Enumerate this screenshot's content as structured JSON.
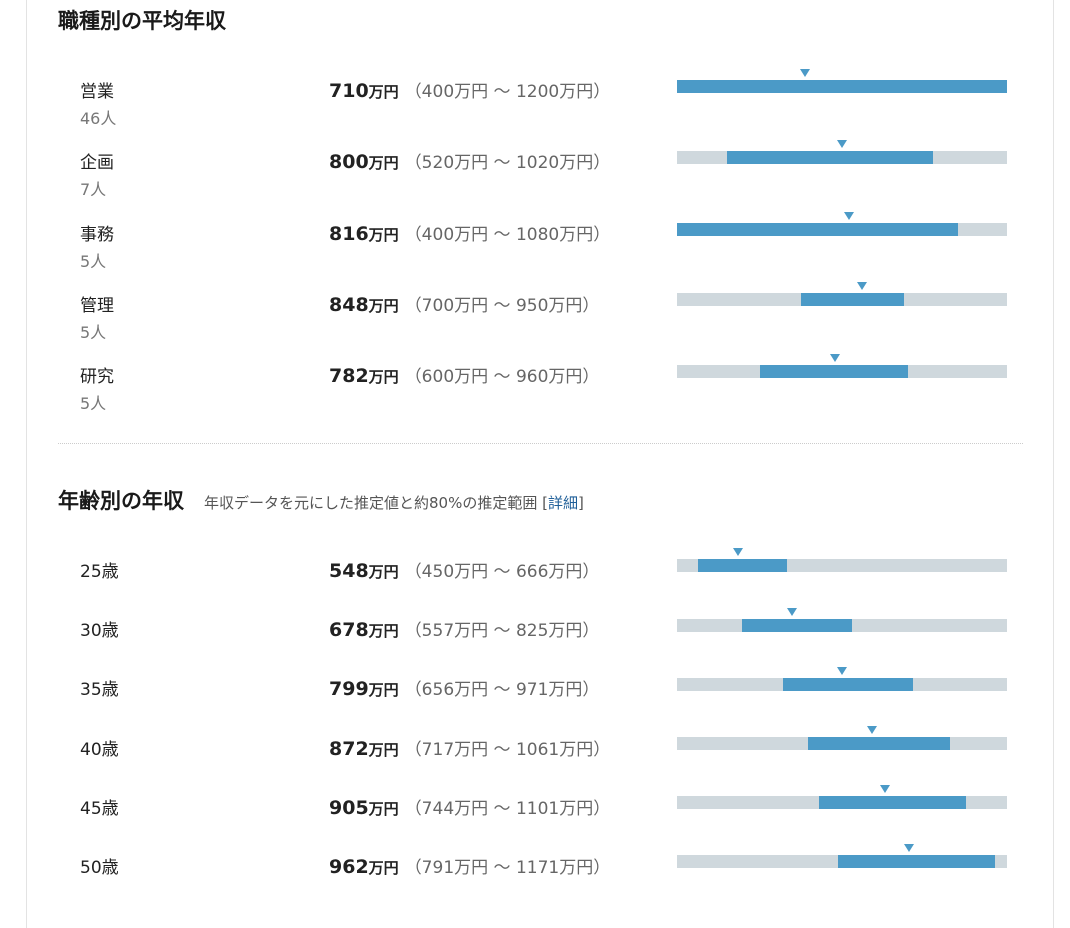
{
  "job_section": {
    "title": "職種別の平均年収",
    "rows": [
      {
        "name": "営業",
        "count": "46人",
        "avg": "710",
        "unit": "万円",
        "range": "（400万円 〜 1200万円）",
        "avg_value": 710,
        "low": 400,
        "high": 1200
      },
      {
        "name": "企画",
        "count": "7人",
        "avg": "800",
        "unit": "万円",
        "range": "（520万円 〜 1020万円）",
        "avg_value": 800,
        "low": 520,
        "high": 1020
      },
      {
        "name": "事務",
        "count": "5人",
        "avg": "816",
        "unit": "万円",
        "range": "（400万円 〜 1080万円）",
        "avg_value": 816,
        "low": 400,
        "high": 1080
      },
      {
        "name": "管理",
        "count": "5人",
        "avg": "848",
        "unit": "万円",
        "range": "（700万円 〜 950万円）",
        "avg_value": 848,
        "low": 700,
        "high": 950
      },
      {
        "name": "研究",
        "count": "5人",
        "avg": "782",
        "unit": "万円",
        "range": "（600万円 〜 960万円）",
        "avg_value": 782,
        "low": 600,
        "high": 960
      }
    ]
  },
  "age_section": {
    "title": "年齢別の年収",
    "subtitle": "年収データを元にした推定値と約80%の推定範囲 [",
    "detail_link": "詳細",
    "subtitle_end": "]",
    "rows": [
      {
        "name": "25歳",
        "avg": "548",
        "unit": "万円",
        "range": "（450万円 〜 666万円）",
        "avg_value": 548,
        "low": 450,
        "high": 666
      },
      {
        "name": "30歳",
        "avg": "678",
        "unit": "万円",
        "range": "（557万円 〜 825万円）",
        "avg_value": 678,
        "low": 557,
        "high": 825
      },
      {
        "name": "35歳",
        "avg": "799",
        "unit": "万円",
        "range": "（656万円 〜 971万円）",
        "avg_value": 799,
        "low": 656,
        "high": 971
      },
      {
        "name": "40歳",
        "avg": "872",
        "unit": "万円",
        "range": "（717万円 〜 1061万円）",
        "avg_value": 872,
        "low": 717,
        "high": 1061
      },
      {
        "name": "45歳",
        "avg": "905",
        "unit": "万円",
        "range": "（744万円 〜 1101万円）",
        "avg_value": 905,
        "low": 744,
        "high": 1101
      },
      {
        "name": "50歳",
        "avg": "962",
        "unit": "万円",
        "range": "（791万円 〜 1171万円）",
        "avg_value": 962,
        "low": 791,
        "high": 1171
      }
    ]
  },
  "colors": {
    "bar_track": "#cfd8dd",
    "bar_fill": "#4b9ac7",
    "link": "#1f5f99"
  }
}
